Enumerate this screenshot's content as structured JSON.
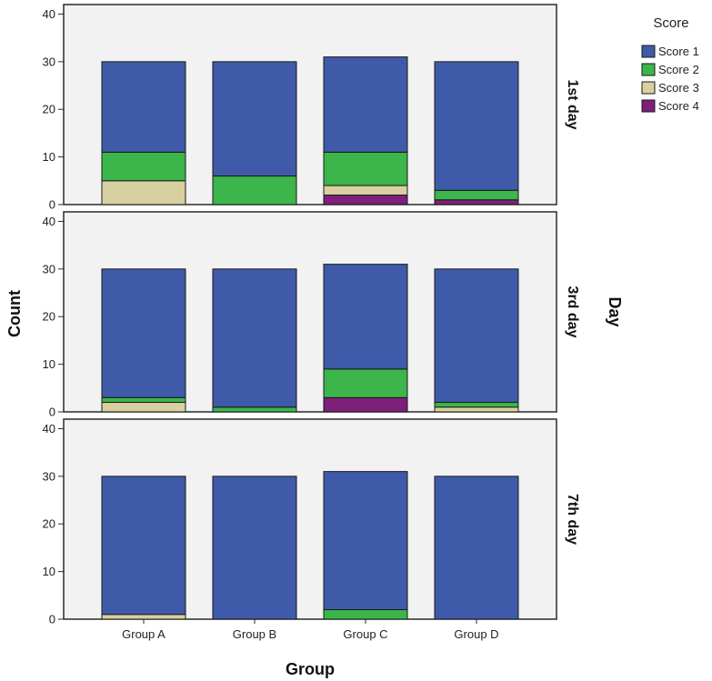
{
  "chart_data": {
    "type": "bar",
    "stacked": true,
    "xlabel": "Group",
    "ylabel": "Count",
    "facet_title": "Day",
    "ylim": [
      0,
      42
    ],
    "yticks": [
      0,
      10,
      20,
      30,
      40
    ],
    "categories": [
      "Group A",
      "Group B",
      "Group C",
      "Group D"
    ],
    "legend": {
      "title": "Score",
      "placement": "top-right",
      "items": [
        {
          "name": "Score 1",
          "color": "#3f5aa8"
        },
        {
          "name": "Score 2",
          "color": "#3cb54b"
        },
        {
          "name": "Score 3",
          "color": "#d8d0a0"
        },
        {
          "name": "Score 4",
          "color": "#7e1f7a"
        }
      ]
    },
    "panels": [
      {
        "label": "1st day",
        "series": [
          {
            "name": "Score 4",
            "values": [
              0,
              0,
              2,
              1
            ]
          },
          {
            "name": "Score 3",
            "values": [
              5,
              0,
              2,
              0
            ]
          },
          {
            "name": "Score 2",
            "values": [
              6,
              6,
              7,
              2
            ]
          },
          {
            "name": "Score 1",
            "values": [
              19,
              24,
              20,
              27
            ]
          }
        ]
      },
      {
        "label": "3rd day",
        "series": [
          {
            "name": "Score 4",
            "values": [
              0,
              0,
              3,
              0
            ]
          },
          {
            "name": "Score 3",
            "values": [
              2,
              0,
              0,
              1
            ]
          },
          {
            "name": "Score 2",
            "values": [
              1,
              1,
              6,
              1
            ]
          },
          {
            "name": "Score 1",
            "values": [
              27,
              29,
              22,
              28
            ]
          }
        ]
      },
      {
        "label": "7th day",
        "series": [
          {
            "name": "Score 4",
            "values": [
              0,
              0,
              0,
              0
            ]
          },
          {
            "name": "Score 3",
            "values": [
              1,
              0,
              0,
              0
            ]
          },
          {
            "name": "Score 2",
            "values": [
              0,
              0,
              2,
              0
            ]
          },
          {
            "name": "Score 1",
            "values": [
              29,
              30,
              29,
              30
            ]
          }
        ]
      }
    ]
  }
}
